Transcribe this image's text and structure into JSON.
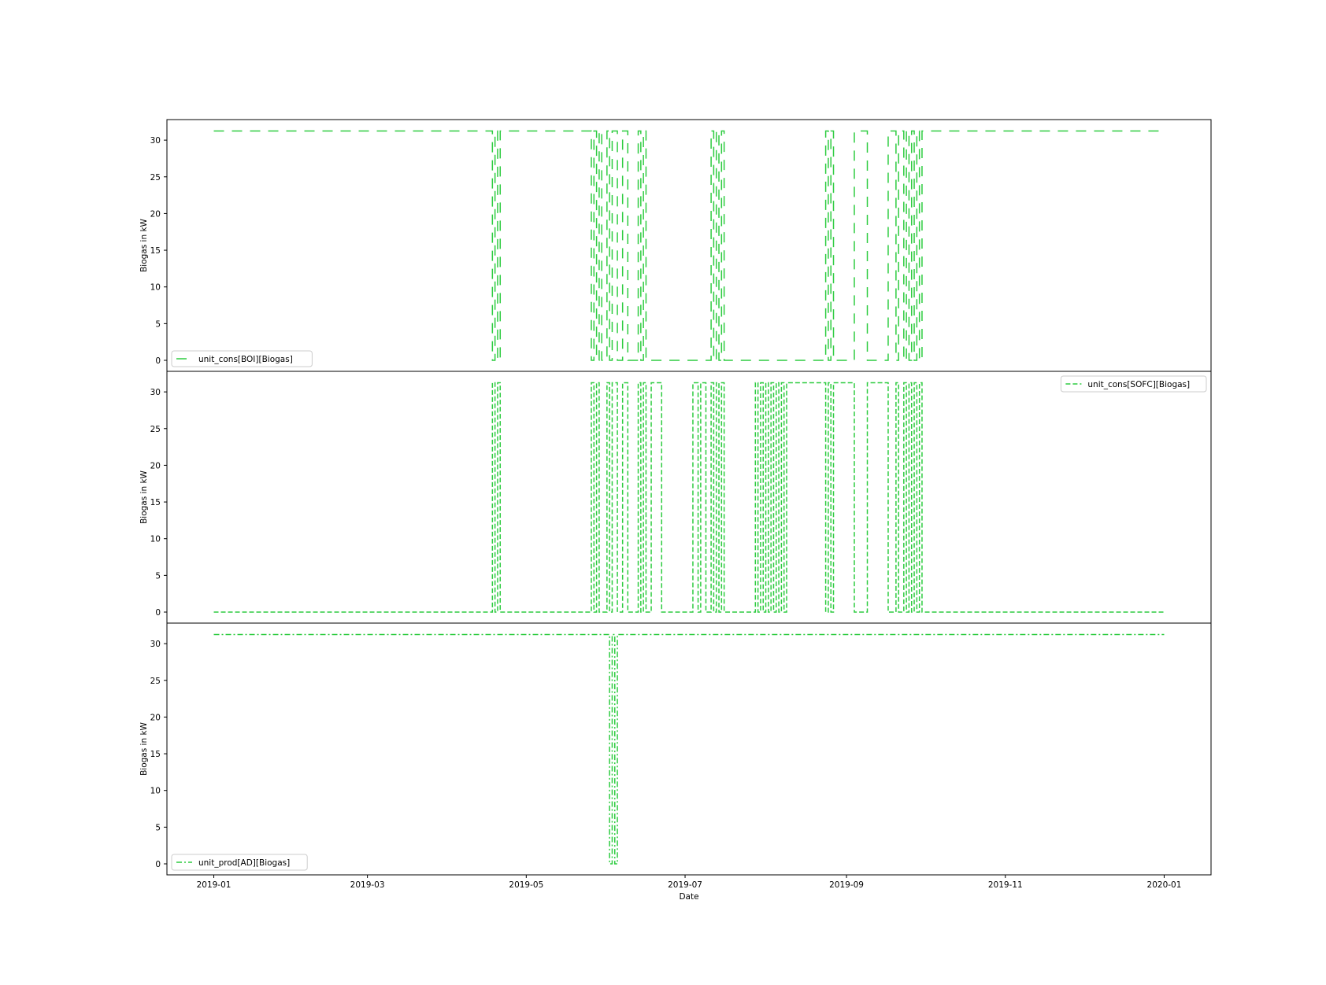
{
  "chart_data": [
    {
      "type": "line",
      "series": [
        {
          "name": "unit_cons[BOI][Biogas]",
          "line_style": "dashed-long",
          "color": "#2ecc40",
          "points": [
            [
              "2019-01-01",
              31.25
            ],
            [
              "2019-04-18",
              31.25
            ],
            [
              "2019-04-18",
              0.0
            ],
            [
              "2019-04-19",
              0.0
            ],
            [
              "2019-04-19",
              31.25
            ],
            [
              "2019-04-20",
              31.25
            ],
            [
              "2019-04-20",
              0.0
            ],
            [
              "2019-04-21",
              0.0
            ],
            [
              "2019-04-21",
              31.25
            ],
            [
              "2019-05-26",
              31.25
            ],
            [
              "2019-05-26",
              0.0
            ],
            [
              "2019-05-27",
              0.0
            ],
            [
              "2019-05-27",
              31.25
            ],
            [
              "2019-05-28",
              31.25
            ],
            [
              "2019-05-28",
              0.0
            ],
            [
              "2019-05-29",
              0.0
            ],
            [
              "2019-05-29",
              31.25
            ],
            [
              "2019-05-30",
              31.25
            ],
            [
              "2019-05-30",
              0.0
            ],
            [
              "2019-06-01",
              0.0
            ],
            [
              "2019-06-01",
              31.25
            ],
            [
              "2019-06-02",
              31.25
            ],
            [
              "2019-06-02",
              0.0
            ],
            [
              "2019-06-03",
              0.0
            ],
            [
              "2019-06-03",
              31.25
            ],
            [
              "2019-06-05",
              31.25
            ],
            [
              "2019-06-05",
              0.0
            ],
            [
              "2019-06-07",
              0.0
            ],
            [
              "2019-06-07",
              31.25
            ],
            [
              "2019-06-09",
              31.25
            ],
            [
              "2019-06-09",
              0.0
            ],
            [
              "2019-06-13",
              0.0
            ],
            [
              "2019-06-13",
              31.25
            ],
            [
              "2019-06-14",
              31.25
            ],
            [
              "2019-06-14",
              0.0
            ],
            [
              "2019-06-15",
              0.0
            ],
            [
              "2019-06-15",
              31.25
            ],
            [
              "2019-06-16",
              31.25
            ],
            [
              "2019-06-16",
              0.0
            ],
            [
              "2019-07-11",
              0.0
            ],
            [
              "2019-07-11",
              31.25
            ],
            [
              "2019-07-12",
              31.25
            ],
            [
              "2019-07-12",
              0.0
            ],
            [
              "2019-07-13",
              0.0
            ],
            [
              "2019-07-13",
              31.25
            ],
            [
              "2019-07-14",
              31.25
            ],
            [
              "2019-07-14",
              0.0
            ],
            [
              "2019-07-15",
              0.0
            ],
            [
              "2019-07-15",
              31.25
            ],
            [
              "2019-07-16",
              31.25
            ],
            [
              "2019-07-16",
              0.0
            ],
            [
              "2019-08-24",
              0.0
            ],
            [
              "2019-08-24",
              31.25
            ],
            [
              "2019-08-25",
              31.25
            ],
            [
              "2019-08-25",
              0.0
            ],
            [
              "2019-08-26",
              0.0
            ],
            [
              "2019-08-26",
              31.25
            ],
            [
              "2019-08-27",
              31.25
            ],
            [
              "2019-08-27",
              0.0
            ],
            [
              "2019-09-04",
              0.0
            ],
            [
              "2019-09-04",
              31.25
            ],
            [
              "2019-09-09",
              31.25
            ],
            [
              "2019-09-09",
              0.0
            ],
            [
              "2019-09-17",
              0.0
            ],
            [
              "2019-09-17",
              31.25
            ],
            [
              "2019-09-20",
              31.25
            ],
            [
              "2019-09-20",
              0.0
            ],
            [
              "2019-09-21",
              0.0
            ],
            [
              "2019-09-21",
              31.25
            ],
            [
              "2019-09-23",
              31.25
            ],
            [
              "2019-09-23",
              0.0
            ],
            [
              "2019-09-24",
              0.0
            ],
            [
              "2019-09-24",
              31.25
            ],
            [
              "2019-09-25",
              31.25
            ],
            [
              "2019-09-25",
              0.0
            ],
            [
              "2019-09-26",
              0.0
            ],
            [
              "2019-09-26",
              31.25
            ],
            [
              "2019-09-27",
              31.25
            ],
            [
              "2019-09-27",
              0.0
            ],
            [
              "2019-09-28",
              0.0
            ],
            [
              "2019-09-28",
              31.25
            ],
            [
              "2019-09-29",
              31.25
            ],
            [
              "2019-09-29",
              0.0
            ],
            [
              "2019-09-30",
              0.0
            ],
            [
              "2019-09-30",
              31.25
            ],
            [
              "2020-01-01",
              31.25
            ]
          ]
        }
      ],
      "ylabel": "Biogas in kW",
      "xlabel": "",
      "ylim": [
        -1.5,
        32.8
      ],
      "yticks": [
        "0",
        "5",
        "10",
        "15",
        "20",
        "25",
        "30"
      ],
      "legend_position": "lower left"
    },
    {
      "type": "line",
      "series": [
        {
          "name": "unit_cons[SOFC][Biogas]",
          "line_style": "dashed",
          "color": "#2ecc40",
          "points": [
            [
              "2019-01-01",
              0.0
            ],
            [
              "2019-04-18",
              0.0
            ],
            [
              "2019-04-18",
              31.25
            ],
            [
              "2019-04-19",
              31.25
            ],
            [
              "2019-04-19",
              0.0
            ],
            [
              "2019-04-20",
              0.0
            ],
            [
              "2019-04-20",
              31.25
            ],
            [
              "2019-04-21",
              31.25
            ],
            [
              "2019-04-21",
              0.0
            ],
            [
              "2019-05-26",
              0.0
            ],
            [
              "2019-05-26",
              31.25
            ],
            [
              "2019-05-27",
              31.25
            ],
            [
              "2019-05-27",
              0.0
            ],
            [
              "2019-05-28",
              0.0
            ],
            [
              "2019-05-28",
              31.25
            ],
            [
              "2019-05-29",
              31.25
            ],
            [
              "2019-05-29",
              0.0
            ],
            [
              "2019-06-01",
              0.0
            ],
            [
              "2019-06-01",
              31.25
            ],
            [
              "2019-06-02",
              31.25
            ],
            [
              "2019-06-02",
              0.0
            ],
            [
              "2019-06-03",
              0.0
            ],
            [
              "2019-06-03",
              31.25
            ],
            [
              "2019-06-05",
              31.25
            ],
            [
              "2019-06-05",
              0.0
            ],
            [
              "2019-06-07",
              0.0
            ],
            [
              "2019-06-07",
              31.25
            ],
            [
              "2019-06-09",
              31.25
            ],
            [
              "2019-06-09",
              0.0
            ],
            [
              "2019-06-13",
              0.0
            ],
            [
              "2019-06-13",
              31.25
            ],
            [
              "2019-06-14",
              31.25
            ],
            [
              "2019-06-14",
              0.0
            ],
            [
              "2019-06-15",
              0.0
            ],
            [
              "2019-06-15",
              31.25
            ],
            [
              "2019-06-16",
              31.25
            ],
            [
              "2019-06-16",
              0.0
            ],
            [
              "2019-06-18",
              0.0
            ],
            [
              "2019-06-18",
              31.25
            ],
            [
              "2019-06-22",
              31.25
            ],
            [
              "2019-06-22",
              0.0
            ],
            [
              "2019-07-04",
              0.0
            ],
            [
              "2019-07-04",
              31.25
            ],
            [
              "2019-07-06",
              31.25
            ],
            [
              "2019-07-06",
              0.0
            ],
            [
              "2019-07-07",
              0.0
            ],
            [
              "2019-07-07",
              31.25
            ],
            [
              "2019-07-09",
              31.25
            ],
            [
              "2019-07-09",
              0.0
            ],
            [
              "2019-07-11",
              0.0
            ],
            [
              "2019-07-11",
              31.25
            ],
            [
              "2019-07-12",
              31.25
            ],
            [
              "2019-07-12",
              0.0
            ],
            [
              "2019-07-13",
              0.0
            ],
            [
              "2019-07-13",
              31.25
            ],
            [
              "2019-07-14",
              31.25
            ],
            [
              "2019-07-14",
              0.0
            ],
            [
              "2019-07-15",
              0.0
            ],
            [
              "2019-07-15",
              31.25
            ],
            [
              "2019-07-16",
              31.25
            ],
            [
              "2019-07-16",
              0.0
            ],
            [
              "2019-07-28",
              0.0
            ],
            [
              "2019-07-28",
              31.25
            ],
            [
              "2019-07-29",
              31.25
            ],
            [
              "2019-07-29",
              0.0
            ],
            [
              "2019-07-30",
              0.0
            ],
            [
              "2019-07-30",
              31.25
            ],
            [
              "2019-07-31",
              31.25
            ],
            [
              "2019-07-31",
              0.0
            ],
            [
              "2019-08-01",
              0.0
            ],
            [
              "2019-08-01",
              31.25
            ],
            [
              "2019-08-02",
              31.25
            ],
            [
              "2019-08-02",
              0.0
            ],
            [
              "2019-08-03",
              0.0
            ],
            [
              "2019-08-03",
              31.25
            ],
            [
              "2019-08-04",
              31.25
            ],
            [
              "2019-08-04",
              0.0
            ],
            [
              "2019-08-05",
              0.0
            ],
            [
              "2019-08-05",
              31.25
            ],
            [
              "2019-08-06",
              31.25
            ],
            [
              "2019-08-06",
              0.0
            ],
            [
              "2019-08-07",
              0.0
            ],
            [
              "2019-08-07",
              31.25
            ],
            [
              "2019-08-08",
              31.25
            ],
            [
              "2019-08-08",
              0.0
            ],
            [
              "2019-08-09",
              0.0
            ],
            [
              "2019-08-09",
              31.25
            ],
            [
              "2019-08-24",
              31.25
            ],
            [
              "2019-08-24",
              0.0
            ],
            [
              "2019-08-25",
              0.0
            ],
            [
              "2019-08-25",
              31.25
            ],
            [
              "2019-08-26",
              31.25
            ],
            [
              "2019-08-26",
              0.0
            ],
            [
              "2019-08-27",
              0.0
            ],
            [
              "2019-08-27",
              31.25
            ],
            [
              "2019-09-04",
              31.25
            ],
            [
              "2019-09-04",
              0.0
            ],
            [
              "2019-09-09",
              0.0
            ],
            [
              "2019-09-09",
              31.25
            ],
            [
              "2019-09-17",
              31.25
            ],
            [
              "2019-09-17",
              0.0
            ],
            [
              "2019-09-20",
              0.0
            ],
            [
              "2019-09-20",
              31.25
            ],
            [
              "2019-09-21",
              31.25
            ],
            [
              "2019-09-21",
              0.0
            ],
            [
              "2019-09-23",
              0.0
            ],
            [
              "2019-09-23",
              31.25
            ],
            [
              "2019-09-24",
              31.25
            ],
            [
              "2019-09-24",
              0.0
            ],
            [
              "2019-09-25",
              0.0
            ],
            [
              "2019-09-25",
              31.25
            ],
            [
              "2019-09-26",
              31.25
            ],
            [
              "2019-09-26",
              0.0
            ],
            [
              "2019-09-27",
              0.0
            ],
            [
              "2019-09-27",
              31.25
            ],
            [
              "2019-09-28",
              31.25
            ],
            [
              "2019-09-28",
              0.0
            ],
            [
              "2019-09-29",
              0.0
            ],
            [
              "2019-09-29",
              31.25
            ],
            [
              "2019-09-30",
              31.25
            ],
            [
              "2019-09-30",
              0.0
            ],
            [
              "2020-01-01",
              0.0
            ]
          ]
        }
      ],
      "ylabel": "Biogas in kW",
      "xlabel": "",
      "ylim": [
        -1.5,
        32.8
      ],
      "yticks": [
        "0",
        "5",
        "10",
        "15",
        "20",
        "25",
        "30"
      ],
      "legend_position": "upper right"
    },
    {
      "type": "line",
      "series": [
        {
          "name": "unit_prod[AD][Biogas]",
          "line_style": "dashdot",
          "color": "#2ecc40",
          "points": [
            [
              "2019-01-01",
              31.25
            ],
            [
              "2019-06-02",
              31.25
            ],
            [
              "2019-06-02",
              0.0
            ],
            [
              "2019-06-03",
              0.0
            ],
            [
              "2019-06-03",
              31.25
            ],
            [
              "2019-06-04",
              31.25
            ],
            [
              "2019-06-04",
              0.0
            ],
            [
              "2019-06-05",
              0.0
            ],
            [
              "2019-06-05",
              31.25
            ],
            [
              "2020-01-01",
              31.25
            ]
          ]
        }
      ],
      "ylabel": "Biogas in kW",
      "xlabel": "Date",
      "ylim": [
        -1.5,
        32.8
      ],
      "yticks": [
        "0",
        "5",
        "10",
        "15",
        "20",
        "25",
        "30"
      ],
      "xticks": [
        "2019-01",
        "2019-03",
        "2019-05",
        "2019-07",
        "2019-09",
        "2019-11",
        "2020-01"
      ],
      "legend_position": "lower left"
    }
  ],
  "shared_x": {
    "xlim": [
      "2018-12-14",
      "2020-01-19"
    ],
    "tick_dates": [
      "2019-01-01",
      "2019-03-01",
      "2019-05-01",
      "2019-07-01",
      "2019-09-01",
      "2019-11-01",
      "2020-01-01"
    ]
  },
  "colors": {
    "line": "#2ecc40",
    "axes": "#000000",
    "legend_border": "#cccccc"
  }
}
